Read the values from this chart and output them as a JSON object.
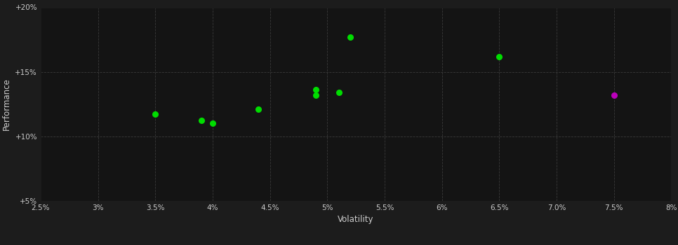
{
  "background_color": "#1c1c1c",
  "plot_bg_color": "#141414",
  "grid_color": "#3a3a3a",
  "grid_style": "--",
  "xlabel": "Volatility",
  "ylabel": "Performance",
  "xlabel_color": "#cccccc",
  "ylabel_color": "#cccccc",
  "tick_color": "#cccccc",
  "xlim": [
    0.025,
    0.08
  ],
  "ylim": [
    0.05,
    0.2
  ],
  "xticks": [
    0.025,
    0.03,
    0.035,
    0.04,
    0.045,
    0.05,
    0.055,
    0.06,
    0.065,
    0.07,
    0.075,
    0.08
  ],
  "yticks": [
    0.05,
    0.1,
    0.15,
    0.2
  ],
  "green_points": [
    [
      0.035,
      0.117
    ],
    [
      0.039,
      0.1125
    ],
    [
      0.04,
      0.11
    ],
    [
      0.044,
      0.121
    ],
    [
      0.049,
      0.132
    ],
    [
      0.049,
      0.136
    ],
    [
      0.051,
      0.134
    ],
    [
      0.052,
      0.177
    ],
    [
      0.065,
      0.162
    ]
  ],
  "magenta_points": [
    [
      0.075,
      0.132
    ]
  ],
  "point_size": 30,
  "green_color": "#00dd00",
  "magenta_color": "#bb00bb"
}
